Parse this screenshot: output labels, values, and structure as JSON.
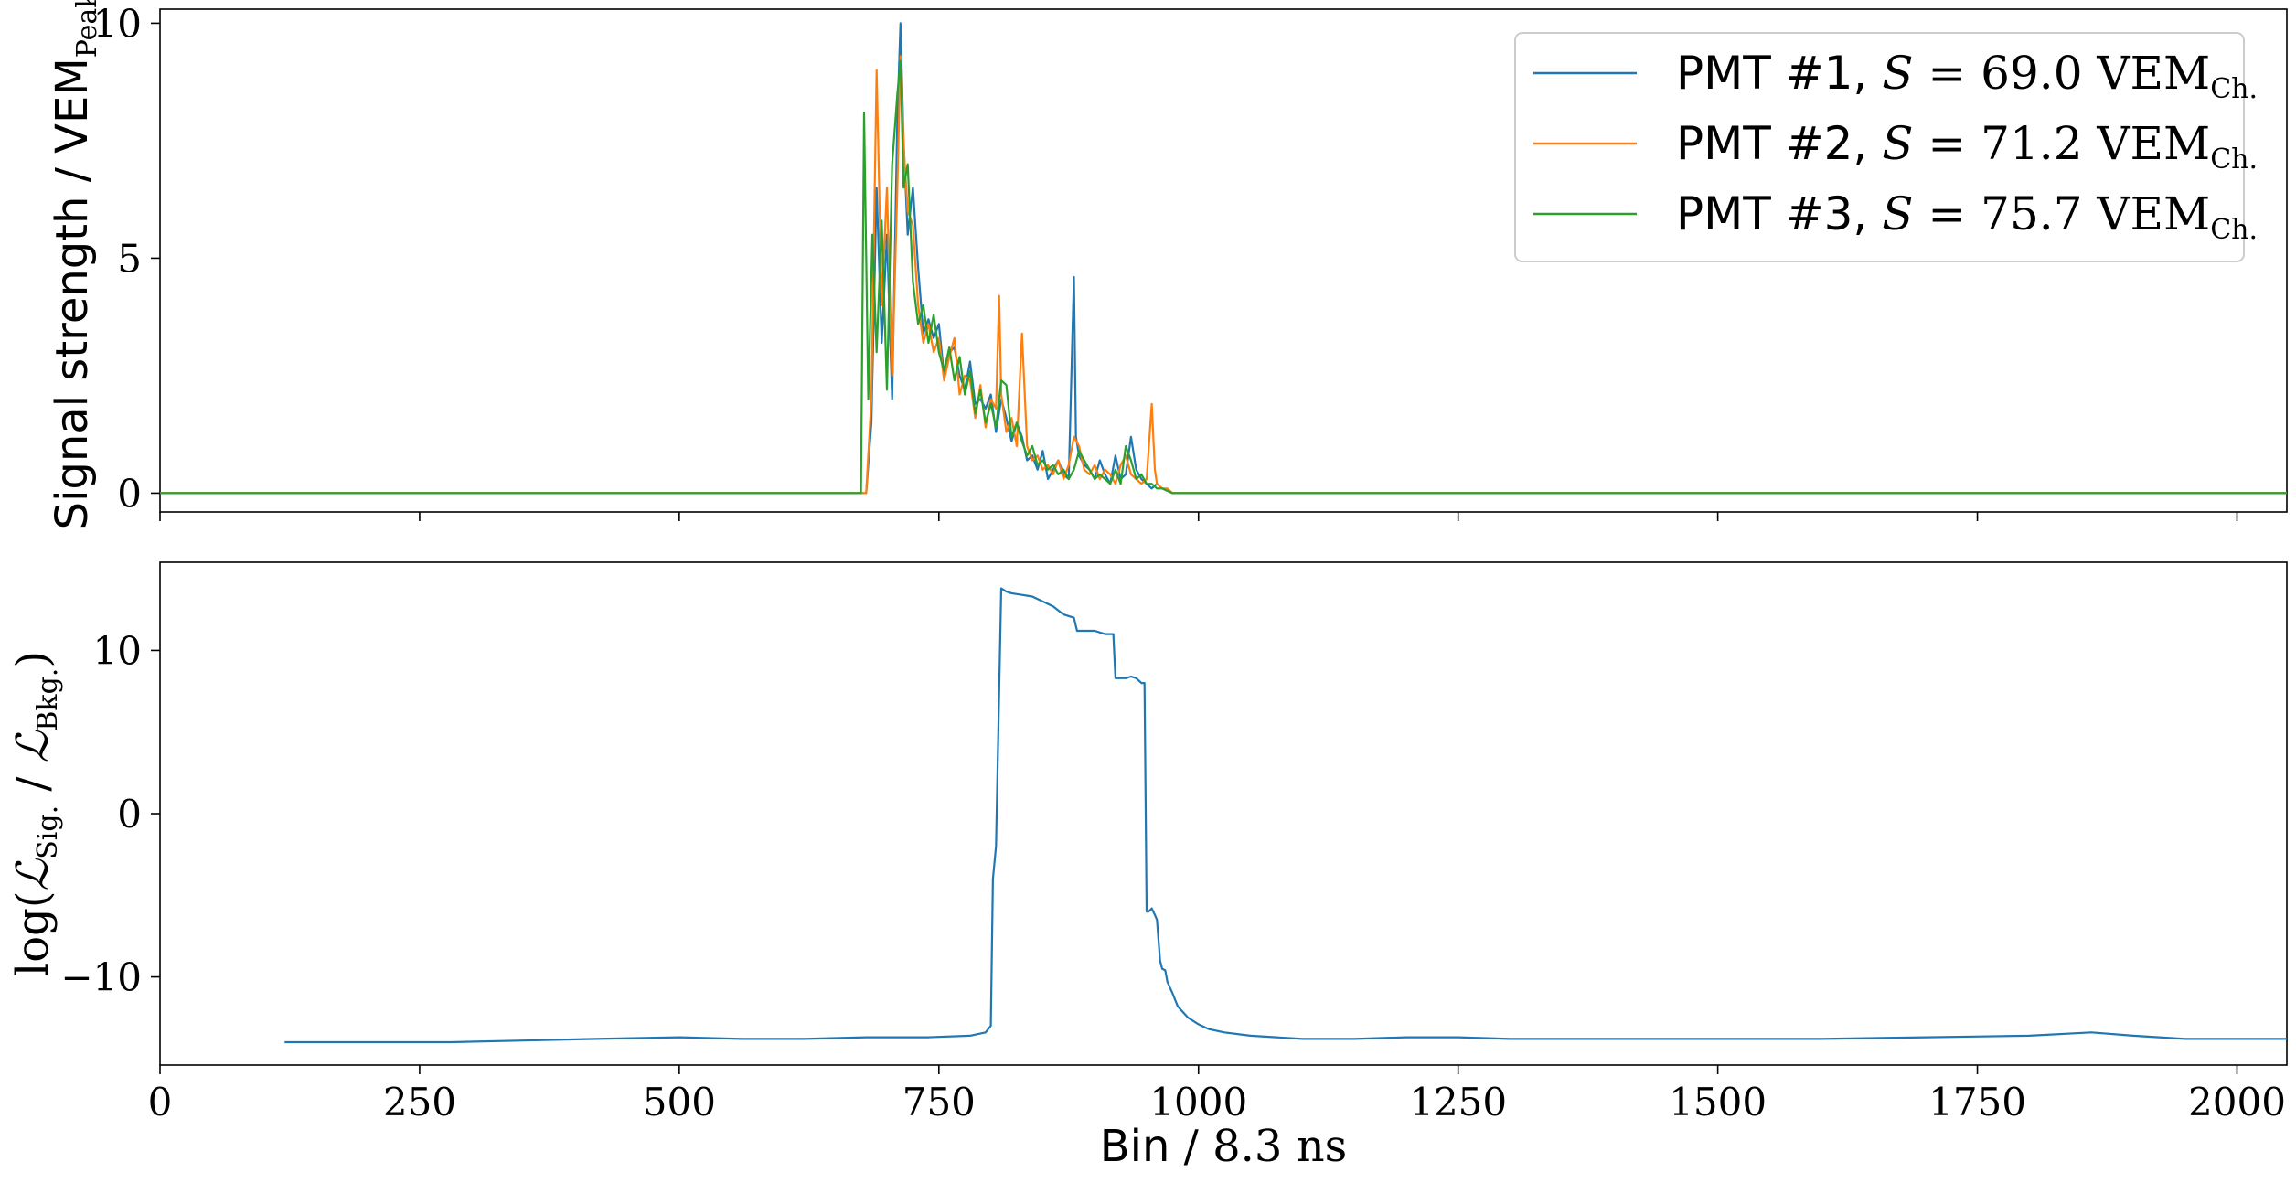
{
  "chart_data": [
    {
      "type": "line",
      "panel": "top",
      "ylabel": "Signal strength / VEMPeak",
      "ylabel_parts": {
        "main": "Signal strength / VEM",
        "sub": "Peak"
      },
      "xlim": [
        0,
        2048
      ],
      "ylim": [
        -0.4,
        10.3
      ],
      "yticks": [
        "0",
        "5",
        "10"
      ],
      "ytick_values": [
        0,
        5,
        10
      ],
      "xtick_values": [
        0,
        250,
        500,
        750,
        1000,
        1250,
        1500,
        1750,
        2000
      ],
      "grid": false,
      "legend_position": "top-right",
      "series": [
        {
          "name": "PMT #1, S = 69.0 VEMCh.",
          "label": {
            "pmt": "PMT #1, ",
            "var": "S",
            "eq": " = 69.0 VEM",
            "sub": "Ch."
          },
          "color": "#1f77b4",
          "x": [
            0,
            675,
            680,
            685,
            690,
            695,
            700,
            705,
            710,
            713,
            716,
            720,
            725,
            730,
            735,
            740,
            745,
            750,
            755,
            760,
            765,
            770,
            775,
            780,
            785,
            790,
            795,
            800,
            805,
            810,
            815,
            820,
            825,
            830,
            835,
            840,
            845,
            850,
            855,
            860,
            865,
            870,
            875,
            880,
            882,
            885,
            890,
            895,
            900,
            905,
            910,
            915,
            920,
            925,
            930,
            935,
            940,
            945,
            950,
            955,
            960,
            965,
            970,
            975,
            980,
            2048
          ],
          "y": [
            0.0,
            0.0,
            0.0,
            1.5,
            6.5,
            3.2,
            5.5,
            2.0,
            8.0,
            10.0,
            7.5,
            5.5,
            6.5,
            4.8,
            3.4,
            3.7,
            3.3,
            3.6,
            2.5,
            3.0,
            3.1,
            2.5,
            2.2,
            2.8,
            1.9,
            2.0,
            1.8,
            2.1,
            1.3,
            2.0,
            1.6,
            1.1,
            1.5,
            1.2,
            0.7,
            0.8,
            0.5,
            0.9,
            0.3,
            0.5,
            0.7,
            0.4,
            0.3,
            4.6,
            1.2,
            0.8,
            0.6,
            0.5,
            0.3,
            0.7,
            0.4,
            0.2,
            0.8,
            0.3,
            0.4,
            1.2,
            0.5,
            0.3,
            0.2,
            0.1,
            0.2,
            0.1,
            0.05,
            0.0,
            0.0,
            0.0
          ]
        },
        {
          "name": "PMT #2, S = 71.2 VEMCh.",
          "label": {
            "pmt": "PMT #2, ",
            "var": "S",
            "eq": " = 71.2 VEM",
            "sub": "Ch."
          },
          "color": "#ff7f0e",
          "x": [
            0,
            675,
            680,
            685,
            690,
            695,
            700,
            705,
            710,
            713,
            716,
            720,
            725,
            730,
            735,
            740,
            745,
            750,
            755,
            760,
            765,
            770,
            775,
            780,
            785,
            790,
            795,
            800,
            805,
            808,
            810,
            815,
            820,
            825,
            830,
            835,
            840,
            845,
            850,
            855,
            860,
            865,
            870,
            875,
            880,
            885,
            890,
            895,
            900,
            905,
            910,
            915,
            920,
            925,
            930,
            935,
            940,
            945,
            950,
            955,
            958,
            960,
            965,
            970,
            975,
            980,
            2048
          ],
          "y": [
            0.0,
            0.0,
            0.0,
            2.0,
            9.0,
            4.0,
            6.5,
            2.5,
            6.5,
            9.3,
            7.4,
            6.0,
            5.7,
            4.0,
            3.2,
            3.6,
            3.0,
            3.3,
            2.4,
            2.9,
            3.3,
            2.1,
            2.5,
            2.4,
            1.6,
            2.3,
            1.4,
            2.0,
            1.8,
            4.2,
            2.1,
            1.3,
            1.6,
            1.0,
            3.4,
            1.0,
            0.7,
            0.8,
            0.5,
            0.6,
            0.4,
            0.7,
            0.3,
            0.6,
            1.2,
            1.0,
            0.5,
            0.4,
            0.6,
            0.3,
            0.5,
            0.4,
            0.2,
            0.6,
            0.8,
            0.4,
            0.3,
            0.2,
            0.3,
            1.9,
            0.5,
            0.2,
            0.1,
            0.1,
            0.0,
            0.0,
            0.0
          ]
        },
        {
          "name": "PMT #3, S = 75.7 VEMCh.",
          "label": {
            "pmt": "PMT #3, ",
            "var": "S",
            "eq": " = 75.7 VEM",
            "sub": "Ch."
          },
          "color": "#2ca02c",
          "x": [
            0,
            675,
            678,
            682,
            686,
            690,
            695,
            700,
            705,
            710,
            713,
            716,
            720,
            725,
            730,
            735,
            740,
            745,
            750,
            755,
            760,
            765,
            770,
            775,
            780,
            785,
            790,
            795,
            800,
            805,
            810,
            815,
            820,
            825,
            830,
            835,
            840,
            845,
            850,
            855,
            860,
            865,
            870,
            875,
            880,
            885,
            890,
            895,
            900,
            905,
            910,
            915,
            920,
            925,
            930,
            935,
            940,
            945,
            950,
            955,
            960,
            965,
            970,
            975,
            980,
            2048
          ],
          "y": [
            0.0,
            0.0,
            8.1,
            2.0,
            5.5,
            3.0,
            5.8,
            2.2,
            7.0,
            8.5,
            9.2,
            6.5,
            7.0,
            4.5,
            3.6,
            4.0,
            3.2,
            3.8,
            3.0,
            2.6,
            3.1,
            2.4,
            2.9,
            2.1,
            2.6,
            1.7,
            2.2,
            1.5,
            1.9,
            1.4,
            2.4,
            2.3,
            1.2,
            1.5,
            1.1,
            0.8,
            1.0,
            0.6,
            0.7,
            0.5,
            0.6,
            0.4,
            0.5,
            0.3,
            0.5,
            0.9,
            0.7,
            0.5,
            0.3,
            0.4,
            0.3,
            0.2,
            0.5,
            0.2,
            1.0,
            0.7,
            0.3,
            0.4,
            0.2,
            0.2,
            0.1,
            0.1,
            0.05,
            0.0,
            0.0,
            0.0
          ]
        }
      ]
    },
    {
      "type": "line",
      "panel": "bottom",
      "xlabel": "Bin / 8.3 ns",
      "xlabel_parts": {
        "word": "Bin",
        "unit": " / 8.3 ns"
      },
      "ylabel": "log(LSig. / LBkg.)",
      "ylabel_parts": {
        "fn": "log(",
        "L1": "ℒ",
        "sub1": "Sig.",
        "sep": " / ",
        "L2": "ℒ",
        "sub2": "Bkg.",
        "close": ")"
      },
      "xlim": [
        0,
        2048
      ],
      "ylim": [
        -15.4,
        15.4
      ],
      "xticks": [
        "0",
        "250",
        "500",
        "750",
        "1000",
        "1250",
        "1500",
        "1750",
        "2000"
      ],
      "xtick_values": [
        0,
        250,
        500,
        750,
        1000,
        1250,
        1500,
        1750,
        2000
      ],
      "yticks": [
        "−10",
        "0",
        "10"
      ],
      "ytick_values": [
        -10,
        0,
        10
      ],
      "grid": false,
      "series": [
        {
          "color": "#1f77b4",
          "x": [
            120,
            200,
            280,
            350,
            420,
            500,
            560,
            620,
            680,
            740,
            780,
            795,
            800,
            802,
            805,
            810,
            815,
            820,
            830,
            840,
            850,
            860,
            870,
            880,
            883,
            890,
            900,
            910,
            915,
            918,
            920,
            925,
            930,
            935,
            940,
            945,
            948,
            950,
            952,
            955,
            958,
            960,
            963,
            965,
            968,
            970,
            975,
            980,
            990,
            1000,
            1010,
            1025,
            1050,
            1075,
            1100,
            1150,
            1200,
            1250,
            1300,
            1400,
            1500,
            1600,
            1700,
            1800,
            1860,
            1900,
            1950,
            2000,
            2048
          ],
          "y": [
            -14.0,
            -14.0,
            -14.0,
            -13.9,
            -13.8,
            -13.7,
            -13.8,
            -13.8,
            -13.7,
            -13.7,
            -13.6,
            -13.4,
            -13.0,
            -4.0,
            -2.0,
            13.8,
            13.6,
            13.5,
            13.4,
            13.3,
            13.0,
            12.7,
            12.2,
            12.0,
            11.2,
            11.2,
            11.2,
            11.0,
            11.0,
            11.0,
            8.3,
            8.3,
            8.3,
            8.4,
            8.3,
            8.0,
            8.0,
            -6.0,
            -6.0,
            -5.8,
            -6.2,
            -6.5,
            -9.0,
            -9.5,
            -9.6,
            -10.3,
            -11.0,
            -11.8,
            -12.5,
            -12.9,
            -13.2,
            -13.4,
            -13.6,
            -13.7,
            -13.8,
            -13.8,
            -13.7,
            -13.7,
            -13.8,
            -13.8,
            -13.8,
            -13.8,
            -13.7,
            -13.6,
            -13.4,
            -13.6,
            -13.8,
            -13.8,
            -13.8
          ]
        }
      ]
    }
  ]
}
